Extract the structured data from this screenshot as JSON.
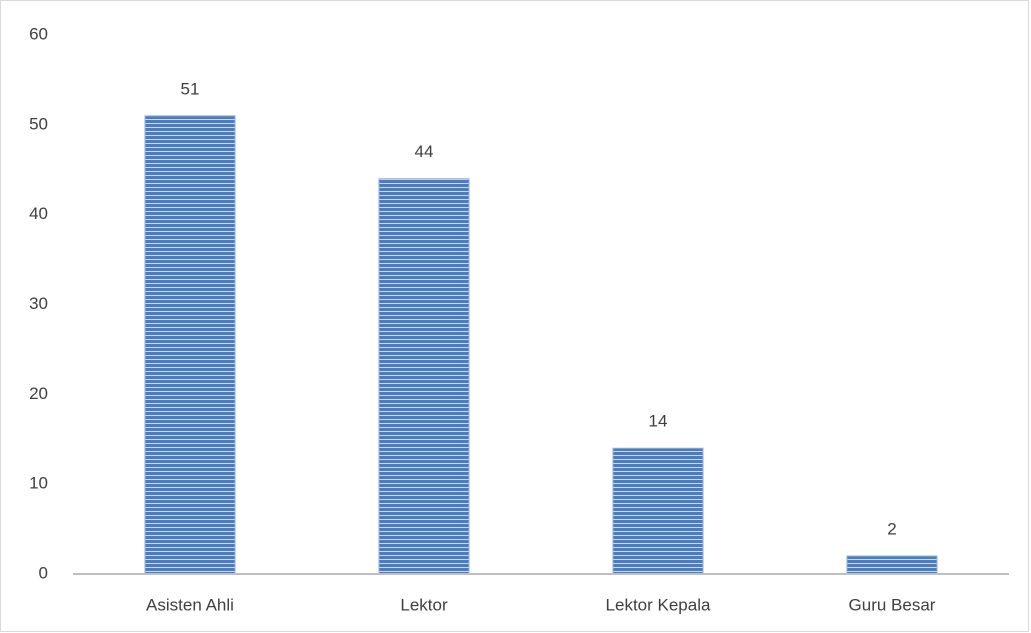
{
  "chart_data": {
    "type": "bar",
    "categories": [
      "Asisten Ahli",
      "Lektor",
      "Lektor Kepala",
      "Guru Besar"
    ],
    "values": [
      51,
      44,
      14,
      2
    ],
    "color": "#4a7cc0",
    "ylim": [
      0,
      60
    ],
    "yticks": [
      0,
      10,
      20,
      30,
      40,
      50,
      60
    ],
    "grid": false
  }
}
